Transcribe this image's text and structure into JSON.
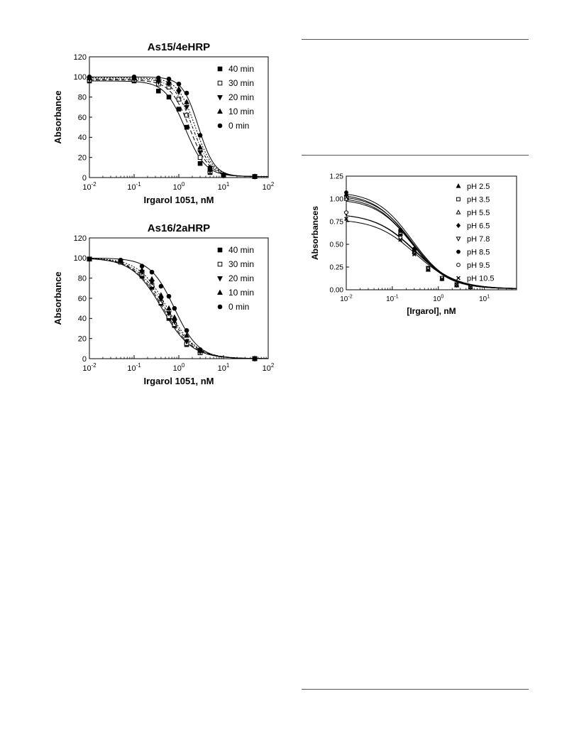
{
  "chart_data": [
    {
      "type": "line",
      "title": "As15/4eHRP",
      "xlabel": "Irgarol 1051, nM",
      "ylabel": "Absorbance",
      "xscale": "log",
      "xlim": [
        0.01,
        100
      ],
      "ylim": [
        0,
        120
      ],
      "x_ticks": [
        {
          "value": 0.01,
          "base": "10",
          "exp": "-2"
        },
        {
          "value": 0.1,
          "base": "10",
          "exp": "-1"
        },
        {
          "value": 1,
          "base": "10",
          "exp": "0"
        },
        {
          "value": 10,
          "base": "10",
          "exp": "1"
        },
        {
          "value": 100,
          "base": "10",
          "exp": "2"
        }
      ],
      "y_ticks": [
        "0",
        "20",
        "40",
        "60",
        "80",
        "100",
        "120"
      ],
      "legend_position": "top-right",
      "grid": false,
      "series": [
        {
          "name": "40 min",
          "marker": "square-filled",
          "curve": {
            "top": 96,
            "bottom": 1,
            "ic50": 1.4,
            "slope": 1.9
          },
          "points": [
            [
              0.01,
              96
            ],
            [
              0.1,
              96
            ],
            [
              0.35,
              86
            ],
            [
              0.6,
              80
            ],
            [
              1.0,
              68
            ],
            [
              1.5,
              50
            ],
            [
              3.0,
              14
            ],
            [
              5.0,
              5
            ],
            [
              10,
              2
            ],
            [
              50,
              1
            ]
          ]
        },
        {
          "name": "30 min",
          "marker": "square-open",
          "curve": {
            "top": 97,
            "bottom": 1,
            "ic50": 1.75,
            "slope": 2.0
          },
          "points": [
            [
              0.01,
              97
            ],
            [
              0.1,
              97
            ],
            [
              0.35,
              93
            ],
            [
              0.6,
              90
            ],
            [
              1.0,
              78
            ],
            [
              1.5,
              62
            ],
            [
              3.0,
              20
            ],
            [
              5.0,
              6
            ],
            [
              10,
              2
            ],
            [
              50,
              1
            ]
          ]
        },
        {
          "name": "20 min",
          "marker": "triangle-down-filled",
          "curve": {
            "top": 98,
            "bottom": 1,
            "ic50": 2.05,
            "slope": 2.1
          },
          "points": [
            [
              0.01,
              98
            ],
            [
              0.1,
              98
            ],
            [
              0.35,
              95
            ],
            [
              0.6,
              93
            ],
            [
              1.0,
              85
            ],
            [
              1.5,
              70
            ],
            [
              3.0,
              25
            ],
            [
              5.0,
              7
            ],
            [
              10,
              2
            ],
            [
              50,
              1
            ]
          ]
        },
        {
          "name": "10 min",
          "marker": "triangle-up-filled",
          "curve": {
            "top": 99,
            "bottom": 1,
            "ic50": 2.35,
            "slope": 2.2
          },
          "points": [
            [
              0.01,
              99
            ],
            [
              0.1,
              99
            ],
            [
              0.35,
              97
            ],
            [
              0.6,
              95
            ],
            [
              1.0,
              88
            ],
            [
              1.5,
              75
            ],
            [
              3.0,
              30
            ],
            [
              5.0,
              8
            ],
            [
              10,
              2
            ],
            [
              50,
              1
            ]
          ]
        },
        {
          "name": "0 min",
          "marker": "circle-filled",
          "curve": {
            "top": 100,
            "bottom": 1,
            "ic50": 2.75,
            "slope": 2.4
          },
          "points": [
            [
              0.01,
              100
            ],
            [
              0.1,
              100
            ],
            [
              0.35,
              99
            ],
            [
              0.6,
              98
            ],
            [
              1.0,
              93
            ],
            [
              1.5,
              84
            ],
            [
              3.0,
              42
            ],
            [
              5.0,
              10
            ],
            [
              10,
              3
            ],
            [
              50,
              1
            ]
          ]
        }
      ]
    },
    {
      "type": "line",
      "title": "As16/2aHRP",
      "xlabel": "Irgarol 1051, nM",
      "ylabel": "Absorbance",
      "xscale": "log",
      "xlim": [
        0.01,
        100
      ],
      "ylim": [
        0,
        120
      ],
      "x_ticks": [
        {
          "value": 0.01,
          "base": "10",
          "exp": "-2"
        },
        {
          "value": 0.1,
          "base": "10",
          "exp": "-1"
        },
        {
          "value": 1,
          "base": "10",
          "exp": "0"
        },
        {
          "value": 10,
          "base": "10",
          "exp": "1"
        },
        {
          "value": 100,
          "base": "10",
          "exp": "2"
        }
      ],
      "y_ticks": [
        "0",
        "20",
        "40",
        "60",
        "80",
        "100",
        "120"
      ],
      "legend_position": "top-right",
      "grid": false,
      "series": [
        {
          "name": "40 min",
          "marker": "square-filled",
          "curve": {
            "top": 100,
            "bottom": 0,
            "ic50": 0.42,
            "slope": 1.3
          },
          "points": [
            [
              0.01,
              99
            ],
            [
              0.05,
              96
            ],
            [
              0.15,
              82
            ],
            [
              0.25,
              71
            ],
            [
              0.4,
              55
            ],
            [
              0.6,
              40
            ],
            [
              0.8,
              33
            ],
            [
              1.5,
              14
            ],
            [
              3.0,
              6
            ],
            [
              50,
              0
            ]
          ]
        },
        {
          "name": "30 min",
          "marker": "square-open",
          "curve": {
            "top": 100,
            "bottom": 0,
            "ic50": 0.45,
            "slope": 1.3
          },
          "points": [
            [
              0.01,
              99
            ],
            [
              0.05,
              96
            ],
            [
              0.15,
              84
            ],
            [
              0.25,
              73
            ],
            [
              0.4,
              56
            ],
            [
              0.6,
              42
            ],
            [
              0.8,
              34
            ],
            [
              1.5,
              15
            ],
            [
              3.0,
              6
            ],
            [
              50,
              0
            ]
          ]
        },
        {
          "name": "20 min",
          "marker": "triangle-down-filled",
          "curve": {
            "top": 100,
            "bottom": 0,
            "ic50": 0.5,
            "slope": 1.3
          },
          "points": [
            [
              0.01,
              99
            ],
            [
              0.05,
              97
            ],
            [
              0.15,
              86
            ],
            [
              0.25,
              76
            ],
            [
              0.4,
              59
            ],
            [
              0.6,
              45
            ],
            [
              0.8,
              37
            ],
            [
              1.5,
              17
            ],
            [
              3.0,
              7
            ],
            [
              50,
              0
            ]
          ]
        },
        {
          "name": "10 min",
          "marker": "triangle-up-filled",
          "curve": {
            "top": 100,
            "bottom": 0,
            "ic50": 0.56,
            "slope": 1.35
          },
          "points": [
            [
              0.01,
              99
            ],
            [
              0.05,
              97
            ],
            [
              0.15,
              88
            ],
            [
              0.25,
              79
            ],
            [
              0.4,
              63
            ],
            [
              0.6,
              50
            ],
            [
              0.8,
              41
            ],
            [
              1.5,
              23
            ],
            [
              3.0,
              8
            ],
            [
              50,
              0
            ]
          ]
        },
        {
          "name": "0 min",
          "marker": "circle-filled",
          "curve": {
            "top": 100,
            "bottom": 0,
            "ic50": 0.8,
            "slope": 1.6
          },
          "points": [
            [
              0.01,
              99
            ],
            [
              0.05,
              98
            ],
            [
              0.15,
              92
            ],
            [
              0.25,
              86
            ],
            [
              0.4,
              72
            ],
            [
              0.6,
              62
            ],
            [
              0.8,
              50
            ],
            [
              1.5,
              28
            ],
            [
              3.0,
              9
            ],
            [
              50,
              0
            ]
          ]
        }
      ]
    },
    {
      "type": "line",
      "title": "",
      "xlabel": "[Irgarol], nM",
      "ylabel": "Absorbances",
      "xscale": "log",
      "xlim": [
        0.01,
        50
      ],
      "ylim": [
        0,
        1.25
      ],
      "x_ticks": [
        {
          "value": 0.01,
          "base": "10",
          "exp": "-2"
        },
        {
          "value": 0.1,
          "base": "10",
          "exp": "-1"
        },
        {
          "value": 1,
          "base": "10",
          "exp": "0"
        },
        {
          "value": 10,
          "base": "10",
          "exp": "1"
        }
      ],
      "y_ticks": [
        "0.00",
        "0.25",
        "0.50",
        "0.75",
        "1.00",
        "1.25"
      ],
      "legend_position": "top-right",
      "grid": false,
      "series": [
        {
          "name": "pH 2.5",
          "marker": "triangle-up-filled",
          "curve": {
            "top": 1.06,
            "bottom": 0.01,
            "ic50": 0.25,
            "slope": 1.1
          },
          "points": [
            [
              0.01,
              1.05
            ],
            [
              0.15,
              0.62
            ],
            [
              0.3,
              0.42
            ],
            [
              0.6,
              0.22
            ],
            [
              1.2,
              0.12
            ],
            [
              2.5,
              0.05
            ],
            [
              5.0,
              0.03
            ]
          ]
        },
        {
          "name": "pH 3.5",
          "marker": "square-open",
          "curve": {
            "top": 1.02,
            "bottom": 0.01,
            "ic50": 0.26,
            "slope": 1.1
          },
          "points": [
            [
              0.01,
              1.02
            ],
            [
              0.15,
              0.64
            ],
            [
              0.3,
              0.43
            ],
            [
              0.6,
              0.23
            ],
            [
              1.2,
              0.12
            ],
            [
              2.5,
              0.05
            ],
            [
              5.0,
              0.03
            ]
          ]
        },
        {
          "name": "pH 5.5",
          "marker": "triangle-up-open",
          "curve": {
            "top": 1.0,
            "bottom": 0.01,
            "ic50": 0.27,
            "slope": 1.1
          },
          "points": [
            [
              0.01,
              1.0
            ],
            [
              0.15,
              0.63
            ],
            [
              0.3,
              0.42
            ],
            [
              0.6,
              0.22
            ],
            [
              1.2,
              0.12
            ],
            [
              2.5,
              0.05
            ],
            [
              5.0,
              0.03
            ]
          ]
        },
        {
          "name": "pH 6.5",
          "marker": "diamond-filled",
          "curve": {
            "top": 1.04,
            "bottom": 0.01,
            "ic50": 0.27,
            "slope": 1.1
          },
          "points": [
            [
              0.01,
              1.04
            ],
            [
              0.15,
              0.65
            ],
            [
              0.3,
              0.44
            ],
            [
              0.6,
              0.23
            ],
            [
              1.2,
              0.12
            ],
            [
              2.5,
              0.05
            ],
            [
              5.0,
              0.03
            ]
          ]
        },
        {
          "name": "pH 7.8",
          "marker": "triangle-down-open",
          "curve": {
            "top": 0.84,
            "bottom": 0.01,
            "ic50": 0.32,
            "slope": 1.0
          },
          "points": [
            [
              0.01,
              0.84
            ],
            [
              0.15,
              0.58
            ],
            [
              0.3,
              0.41
            ],
            [
              0.6,
              0.24
            ],
            [
              1.2,
              0.13
            ],
            [
              2.5,
              0.06
            ],
            [
              5.0,
              0.03
            ]
          ]
        },
        {
          "name": "pH 8.5",
          "marker": "circle-filled",
          "curve": {
            "top": 1.08,
            "bottom": 0.01,
            "ic50": 0.27,
            "slope": 1.1
          },
          "points": [
            [
              0.01,
              1.07
            ],
            [
              0.15,
              0.66
            ],
            [
              0.3,
              0.45
            ],
            [
              0.6,
              0.24
            ],
            [
              1.2,
              0.13
            ],
            [
              2.5,
              0.05
            ],
            [
              5.0,
              0.03
            ]
          ]
        },
        {
          "name": "pH 9.5",
          "marker": "circle-open",
          "curve": {
            "top": 0.84,
            "bottom": 0.01,
            "ic50": 0.31,
            "slope": 1.0
          },
          "points": [
            [
              0.01,
              0.85
            ],
            [
              0.15,
              0.57
            ],
            [
              0.3,
              0.4
            ],
            [
              0.6,
              0.23
            ],
            [
              1.2,
              0.13
            ],
            [
              2.5,
              0.06
            ],
            [
              5.0,
              0.03
            ]
          ]
        },
        {
          "name": "pH 10.5",
          "marker": "x",
          "curve": {
            "top": 0.78,
            "bottom": 0.01,
            "ic50": 0.32,
            "slope": 1.0
          },
          "points": [
            [
              0.01,
              0.78
            ],
            [
              0.15,
              0.55
            ],
            [
              0.3,
              0.39
            ],
            [
              0.6,
              0.22
            ],
            [
              1.2,
              0.12
            ],
            [
              2.5,
              0.06
            ],
            [
              5.0,
              0.03
            ]
          ]
        }
      ]
    }
  ]
}
